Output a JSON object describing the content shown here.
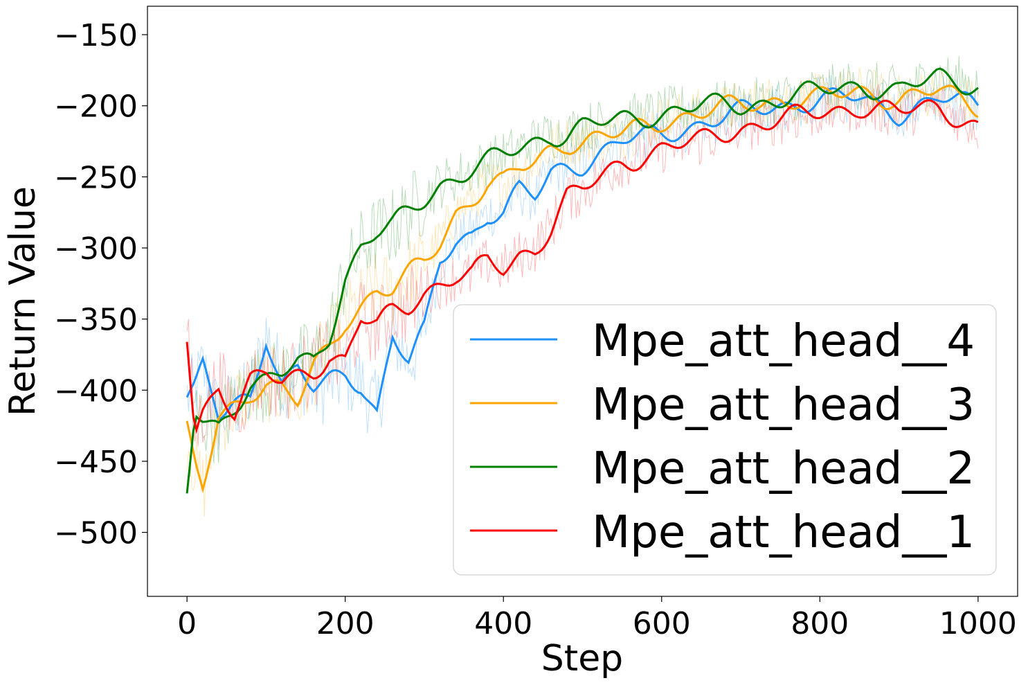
{
  "chart_data": {
    "type": "line",
    "title": "",
    "xlabel": "Step",
    "ylabel": "Return Value",
    "xlim": [
      -50,
      1050
    ],
    "ylim": [
      -545,
      -130
    ],
    "xticks": [
      0,
      200,
      400,
      600,
      800,
      1000
    ],
    "xtick_labels": [
      "0",
      "200",
      "400",
      "600",
      "800",
      "1000"
    ],
    "yticks": [
      -150,
      -200,
      -250,
      -300,
      -350,
      -400,
      -450,
      -500
    ],
    "ytick_labels": [
      "−150",
      "−200",
      "−250",
      "−300",
      "−350",
      "−400",
      "−450",
      "−500"
    ],
    "grid": false,
    "legend_position": "lower-right",
    "series": [
      {
        "name": "Mpe_att_head__4",
        "color": "#1e90ff",
        "x": [
          0,
          10,
          20,
          40,
          60,
          80,
          100,
          120,
          140,
          160,
          180,
          200,
          220,
          240,
          260,
          280,
          300,
          320,
          340,
          360,
          380,
          400,
          420,
          440,
          460,
          480,
          500,
          550,
          600,
          650,
          700,
          750,
          800,
          850,
          900,
          950,
          1000
        ],
        "values": [
          -405,
          -400,
          -385,
          -420,
          -410,
          -405,
          -360,
          -395,
          -385,
          -400,
          -395,
          -390,
          -395,
          -415,
          -360,
          -380,
          -360,
          -310,
          -295,
          -290,
          -275,
          -275,
          -260,
          -265,
          -248,
          -243,
          -240,
          -225,
          -220,
          -212,
          -205,
          -200,
          -195,
          -195,
          -205,
          -195,
          -200
        ]
      },
      {
        "name": "Mpe_att_head__3",
        "color": "#ffa500",
        "x": [
          0,
          10,
          20,
          40,
          60,
          80,
          100,
          120,
          140,
          160,
          180,
          200,
          220,
          240,
          260,
          280,
          300,
          320,
          340,
          360,
          380,
          400,
          420,
          440,
          460,
          480,
          500,
          550,
          600,
          650,
          700,
          750,
          800,
          850,
          900,
          950,
          1000
        ],
        "values": [
          -430,
          -455,
          -470,
          -420,
          -410,
          -400,
          -395,
          -400,
          -410,
          -385,
          -370,
          -350,
          -340,
          -330,
          -330,
          -320,
          -310,
          -295,
          -275,
          -265,
          -255,
          -255,
          -245,
          -240,
          -230,
          -225,
          -225,
          -220,
          -210,
          -205,
          -200,
          -195,
          -195,
          -190,
          -195,
          -190,
          -200
        ]
      },
      {
        "name": "Mpe_att_head__2",
        "color": "#008000",
        "x": [
          0,
          10,
          20,
          40,
          60,
          80,
          100,
          120,
          140,
          160,
          180,
          200,
          220,
          240,
          260,
          280,
          300,
          320,
          340,
          360,
          380,
          400,
          420,
          440,
          460,
          480,
          500,
          550,
          600,
          650,
          700,
          750,
          800,
          850,
          900,
          950,
          1000
        ],
        "values": [
          -475,
          -415,
          -420,
          -425,
          -410,
          -395,
          -395,
          -390,
          -380,
          -380,
          -360,
          -320,
          -300,
          -290,
          -285,
          -275,
          -265,
          -255,
          -250,
          -245,
          -240,
          -235,
          -230,
          -225,
          -220,
          -220,
          -215,
          -210,
          -205,
          -200,
          -200,
          -195,
          -190,
          -185,
          -190,
          -180,
          -185
        ]
      },
      {
        "name": "Mpe_att_head__1",
        "color": "#ff0000",
        "x": [
          0,
          10,
          20,
          40,
          60,
          80,
          100,
          120,
          140,
          160,
          180,
          200,
          220,
          240,
          260,
          280,
          300,
          320,
          340,
          360,
          380,
          400,
          420,
          440,
          460,
          480,
          500,
          550,
          600,
          650,
          700,
          750,
          800,
          850,
          900,
          950,
          1000
        ],
        "values": [
          -362,
          -430,
          -415,
          -395,
          -415,
          -395,
          -390,
          -395,
          -390,
          -385,
          -375,
          -380,
          -350,
          -355,
          -345,
          -340,
          -330,
          -325,
          -320,
          -320,
          -310,
          -315,
          -305,
          -300,
          -285,
          -265,
          -260,
          -240,
          -230,
          -225,
          -215,
          -210,
          -205,
          -200,
          -205,
          -200,
          -215
        ]
      }
    ]
  }
}
